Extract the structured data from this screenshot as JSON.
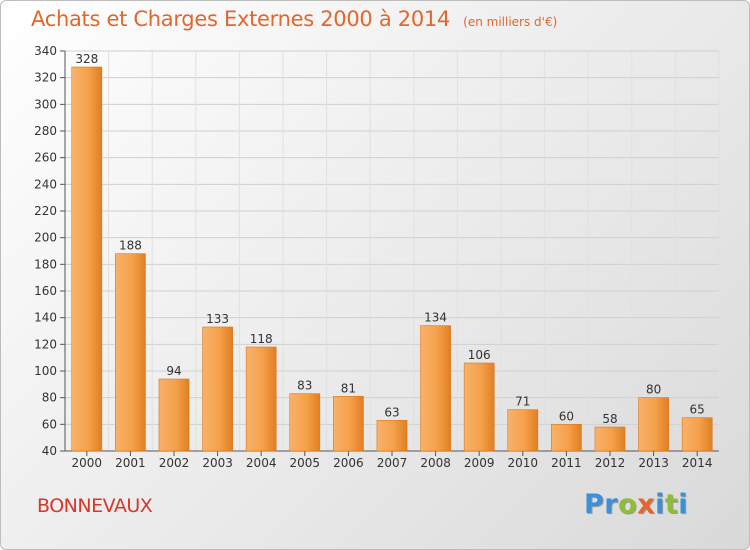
{
  "chart_data": {
    "type": "bar",
    "title": "Achats et Charges Externes 2000 à 2014",
    "unit": "(en milliers d'€)",
    "categories": [
      "2000",
      "2001",
      "2002",
      "2003",
      "2004",
      "2005",
      "2006",
      "2007",
      "2008",
      "2009",
      "2010",
      "2011",
      "2012",
      "2013",
      "2014"
    ],
    "values": [
      328,
      188,
      94,
      133,
      118,
      83,
      81,
      63,
      134,
      106,
      71,
      60,
      58,
      80,
      65
    ],
    "ylim": [
      40,
      340
    ],
    "yticks": [
      40,
      60,
      80,
      100,
      120,
      140,
      160,
      180,
      200,
      220,
      240,
      260,
      280,
      300,
      320,
      340
    ],
    "grid": true,
    "bar_color": "#f5a14b"
  },
  "footer": {
    "commune": "BONNEVAUX",
    "logo_letters": [
      {
        "char": "P",
        "color": "#3d8fd6"
      },
      {
        "char": "r",
        "color": "#3d8fd6"
      },
      {
        "char": "o",
        "color": "#8dbd3a"
      },
      {
        "char": "x",
        "color": "#e2672a"
      },
      {
        "char": "i",
        "color": "#3d8fd6"
      },
      {
        "char": "t",
        "color": "#8dbd3a"
      },
      {
        "char": "i",
        "color": "#3d8fd6"
      }
    ]
  }
}
